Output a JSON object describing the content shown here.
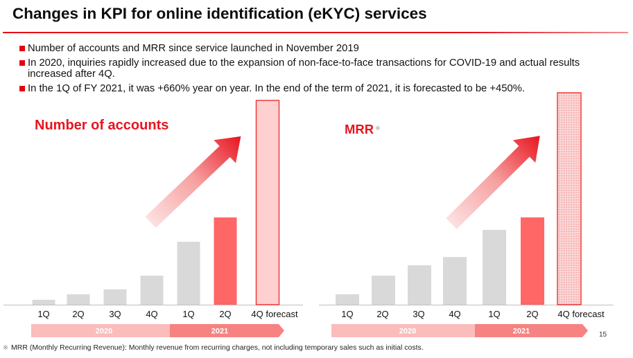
{
  "slide": {
    "title": "Changes in KPI for online identification (eKYC) services",
    "bullets": [
      "Number of accounts and MRR since service launched in November 2019",
      "In 2020, inquiries rapidly increased due to the expansion of non-face-to-face transactions for COVID-19 and actual results increased after 4Q.",
      "In the 1Q of FY 2021, it was +660% year on year. In the end of the term of 2021, it is forecasted to be +450%."
    ],
    "page_number": "15",
    "footnote": {
      "mark": "※",
      "text": "MRR (Monthly Recurring Revenue): Monthly revenue from recurring charges, not including temporary sales such as initial costs."
    }
  },
  "colors": {
    "title_rule": "#e60012",
    "bullet_marker": "#e60012",
    "chart_title": "#e8141e",
    "arrow_gradient": [
      "#fde0e0",
      "#f6a0a0",
      "#e8141e"
    ]
  },
  "chart_data": [
    {
      "type": "bar",
      "title": "Number of accounts",
      "categories": [
        "1Q",
        "2Q",
        "3Q",
        "4Q",
        "1Q",
        "2Q",
        "4Q forecast"
      ],
      "groups": [
        {
          "label": "2020",
          "count": 4,
          "color": "#fbbcbc"
        },
        {
          "label": "2021",
          "count": 3,
          "color": "#f78282"
        }
      ],
      "values": [
        2.4,
        5.1,
        7.5,
        14.2,
        30.8,
        42.7,
        100
      ],
      "ylim": [
        0,
        100
      ],
      "grid": false,
      "bar_colors": [
        "#d9d9d9",
        "#d9d9d9",
        "#d9d9d9",
        "#d9d9d9",
        "#d9d9d9",
        "#ff6666",
        "#ffd0d0"
      ],
      "bar_borders": [
        null,
        null,
        null,
        null,
        null,
        null,
        "#ee3b3b"
      ],
      "bar_pattern_colors": [
        null,
        null,
        null,
        null,
        null,
        null,
        null
      ]
    },
    {
      "type": "bar",
      "title": "MRR",
      "title_note_mark": "※",
      "categories": [
        "1Q",
        "2Q",
        "3Q",
        "4Q",
        "1Q",
        "2Q",
        "4Q forecast"
      ],
      "groups": [
        {
          "label": "2020",
          "count": 4,
          "color": "#fbbcbc"
        },
        {
          "label": "2021",
          "count": 3,
          "color": "#f78282"
        }
      ],
      "values": [
        4.9,
        13.7,
        18.6,
        22.5,
        35.3,
        41.2,
        100
      ],
      "ylim": [
        0,
        100
      ],
      "grid": false,
      "bar_colors": [
        "#d9d9d9",
        "#d9d9d9",
        "#d9d9d9",
        "#d9d9d9",
        "#d9d9d9",
        "#ff6666",
        "#fcd6d6"
      ],
      "bar_borders": [
        null,
        null,
        null,
        null,
        null,
        null,
        "#ee3b3b"
      ],
      "bar_pattern_colors": [
        null,
        null,
        null,
        null,
        null,
        null,
        "#f19a9a"
      ]
    }
  ]
}
